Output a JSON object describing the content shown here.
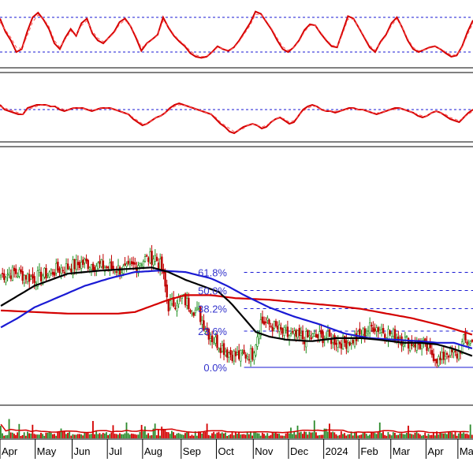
{
  "chart_data": [
    {
      "type": "line",
      "panel": "oscillator-top",
      "title": "",
      "guide_levels": [
        80,
        20
      ],
      "series": [
        {
          "color": "#d40000",
          "style": "solid",
          "values": [
            78,
            55,
            40,
            20,
            25,
            55,
            80,
            88,
            76,
            60,
            35,
            25,
            45,
            60,
            48,
            70,
            78,
            52,
            40,
            35,
            45,
            55,
            72,
            78,
            65,
            45,
            22,
            35,
            42,
            50,
            80,
            62,
            48,
            38,
            30,
            18,
            12,
            10,
            12,
            20,
            30,
            25,
            22,
            28,
            40,
            55,
            70,
            90,
            86,
            72,
            58,
            40,
            25,
            20,
            28,
            40,
            58,
            68,
            66,
            52,
            40,
            30,
            28,
            55,
            82,
            78,
            62,
            45,
            28,
            20,
            38,
            50,
            70,
            80,
            62,
            40,
            25,
            20,
            24,
            28,
            30,
            25,
            18,
            12,
            14,
            30,
            55,
            75
          ]
        },
        {
          "color": "#ff5555",
          "style": "dashed",
          "values": [
            72,
            58,
            45,
            28,
            26,
            48,
            72,
            84,
            78,
            64,
            40,
            28,
            42,
            56,
            50,
            66,
            74,
            56,
            44,
            38,
            44,
            53,
            68,
            75,
            66,
            48,
            27,
            34,
            41,
            49,
            74,
            64,
            50,
            40,
            32,
            22,
            15,
            12,
            13,
            19,
            28,
            26,
            23,
            27,
            38,
            52,
            66,
            85,
            85,
            74,
            60,
            44,
            29,
            23,
            28,
            38,
            55,
            66,
            66,
            54,
            42,
            32,
            29,
            51,
            77,
            77,
            63,
            47,
            31,
            23,
            36,
            48,
            66,
            77,
            63,
            43,
            28,
            22,
            24,
            27,
            29,
            26,
            20,
            15,
            15,
            28,
            50,
            70
          ]
        }
      ]
    },
    {
      "type": "line",
      "panel": "oscillator-middle",
      "title": "",
      "guide_levels": [
        0
      ],
      "series": [
        {
          "color": "#d40000",
          "style": "solid",
          "values": [
            3,
            0,
            -1,
            -2,
            -3,
            -3,
            1,
            2,
            3,
            3,
            3,
            2,
            2,
            0,
            -1,
            0,
            1,
            1,
            1,
            0,
            -1,
            0,
            1,
            1,
            1,
            0,
            -1,
            -2,
            -3,
            -6,
            -8,
            -10,
            -9,
            -7,
            -5,
            -4,
            -2,
            1,
            3,
            4,
            3,
            2,
            1,
            0,
            -1,
            -2,
            -3,
            -6,
            -9,
            -11,
            -14,
            -15,
            -13,
            -11,
            -10,
            -9,
            -10,
            -12,
            -11,
            -8,
            -6,
            -5,
            -7,
            -9,
            -8,
            -4,
            0,
            2,
            3,
            2,
            0,
            -1,
            -1,
            -2,
            -1,
            0,
            1,
            1,
            0,
            0,
            -1,
            -2,
            -3,
            -2,
            -1,
            0,
            1,
            1,
            0,
            -1,
            -2,
            -4,
            -5,
            -4,
            -2,
            -1,
            -2,
            -4,
            -6,
            -7,
            -8,
            -5,
            -2,
            0
          ]
        },
        {
          "color": "#ff5555",
          "style": "dashed",
          "values": [
            2,
            1,
            0,
            -1,
            -2,
            -3,
            0,
            1,
            2,
            3,
            3,
            2,
            2,
            1,
            0,
            0,
            1,
            1,
            1,
            0,
            0,
            0,
            1,
            1,
            1,
            0,
            -1,
            -2,
            -3,
            -5,
            -7,
            -9,
            -9,
            -7,
            -5,
            -4,
            -2,
            0,
            2,
            3,
            3,
            2,
            1,
            0,
            -1,
            -2,
            -3,
            -5,
            -8,
            -10,
            -12,
            -14,
            -13,
            -12,
            -10,
            -9,
            -10,
            -11,
            -10,
            -8,
            -6,
            -5,
            -6,
            -8,
            -7,
            -4,
            -1,
            1,
            2,
            2,
            0,
            -1,
            -1,
            -1,
            -1,
            0,
            0,
            1,
            0,
            0,
            -1,
            -2,
            -2,
            -2,
            -1,
            0,
            0,
            1,
            0,
            -1,
            -2,
            -3,
            -4,
            -4,
            -2,
            -1,
            -2,
            -3,
            -5,
            -6,
            -7,
            -5,
            -3,
            -1
          ]
        }
      ]
    },
    {
      "type": "candlestick",
      "panel": "price",
      "title": "",
      "xlabel": "",
      "ylabel": "",
      "months": [
        "Apr",
        "May",
        "Jun",
        "Jul",
        "Aug",
        "Sep",
        "Oct",
        "Nov",
        "Dec",
        "2024",
        "Feb",
        "Mar",
        "Apr",
        "May"
      ],
      "month_start_index": [
        0,
        21,
        43,
        64,
        85,
        108,
        129,
        151,
        172,
        193,
        214,
        233,
        254,
        273
      ],
      "n_bars": 282,
      "ylim": [
        0,
        100
      ],
      "fibonacci": {
        "low_value": 0,
        "high_value": 100,
        "start_index": 145,
        "levels": [
          {
            "label": "61.8%",
            "value": 61.8
          },
          {
            "label": "50.0%",
            "value": 50.0
          },
          {
            "label": "38.2%",
            "value": 38.2
          },
          {
            "label": "23.6%",
            "value": 23.6
          },
          {
            "label": "0.0%",
            "value": 0.0
          }
        ]
      },
      "price_anchors": [
        [
          0,
          60
        ],
        [
          8,
          62
        ],
        [
          20,
          58
        ],
        [
          35,
          64
        ],
        [
          50,
          68
        ],
        [
          60,
          66
        ],
        [
          75,
          63
        ],
        [
          85,
          70
        ],
        [
          92,
          72
        ],
        [
          96,
          64
        ],
        [
          100,
          40
        ],
        [
          108,
          45
        ],
        [
          113,
          40
        ],
        [
          118,
          35
        ],
        [
          125,
          20
        ],
        [
          135,
          10
        ],
        [
          142,
          7
        ],
        [
          150,
          9
        ],
        [
          155,
          30
        ],
        [
          162,
          27
        ],
        [
          170,
          21
        ],
        [
          180,
          19
        ],
        [
          192,
          20
        ],
        [
          205,
          16
        ],
        [
          212,
          19
        ],
        [
          222,
          27
        ],
        [
          232,
          22
        ],
        [
          242,
          17
        ],
        [
          252,
          14
        ],
        [
          262,
          4
        ],
        [
          266,
          10
        ],
        [
          272,
          8
        ],
        [
          276,
          17
        ],
        [
          282,
          16
        ]
      ],
      "ma_short": {
        "color": "#000000",
        "anchors": [
          [
            0,
            40
          ],
          [
            20,
            53
          ],
          [
            40,
            61
          ],
          [
            60,
            63
          ],
          [
            75,
            64
          ],
          [
            90,
            65
          ],
          [
            100,
            62
          ],
          [
            110,
            57
          ],
          [
            120,
            53
          ],
          [
            130,
            49
          ],
          [
            137,
            42
          ],
          [
            145,
            32
          ],
          [
            152,
            23
          ],
          [
            160,
            20
          ],
          [
            170,
            18
          ],
          [
            185,
            17
          ],
          [
            200,
            19
          ],
          [
            215,
            19
          ],
          [
            225,
            18
          ],
          [
            240,
            16
          ],
          [
            250,
            16
          ],
          [
            260,
            15
          ],
          [
            270,
            12
          ],
          [
            282,
            7
          ]
        ]
      },
      "ma_medium": {
        "color": "#1a1ad4",
        "anchors": [
          [
            0,
            26
          ],
          [
            10,
            32
          ],
          [
            20,
            39
          ],
          [
            35,
            46
          ],
          [
            50,
            53
          ],
          [
            65,
            58
          ],
          [
            80,
            62
          ],
          [
            95,
            63
          ],
          [
            110,
            62
          ],
          [
            125,
            58
          ],
          [
            135,
            53
          ],
          [
            145,
            47
          ],
          [
            160,
            39
          ],
          [
            175,
            33
          ],
          [
            190,
            28
          ],
          [
            205,
            22
          ],
          [
            220,
            19
          ],
          [
            235,
            18
          ],
          [
            250,
            17
          ],
          [
            260,
            16
          ],
          [
            270,
            16
          ],
          [
            282,
            12
          ]
        ]
      },
      "ma_long": {
        "color": "#d40000",
        "anchors": [
          [
            0,
            37
          ],
          [
            20,
            36
          ],
          [
            40,
            35
          ],
          [
            60,
            35
          ],
          [
            70,
            35
          ],
          [
            80,
            36
          ],
          [
            90,
            40
          ],
          [
            100,
            44
          ],
          [
            110,
            47
          ],
          [
            125,
            47
          ],
          [
            140,
            45
          ],
          [
            160,
            44
          ],
          [
            180,
            42
          ],
          [
            200,
            40
          ],
          [
            215,
            38
          ],
          [
            230,
            35
          ],
          [
            245,
            32
          ],
          [
            260,
            28
          ],
          [
            270,
            25
          ],
          [
            282,
            21
          ]
        ]
      }
    },
    {
      "type": "bar",
      "panel": "volume",
      "title": "",
      "bar_colors": [
        "#2e8b2e",
        "#d40000"
      ],
      "volume_ma_color": "#d40000"
    }
  ]
}
